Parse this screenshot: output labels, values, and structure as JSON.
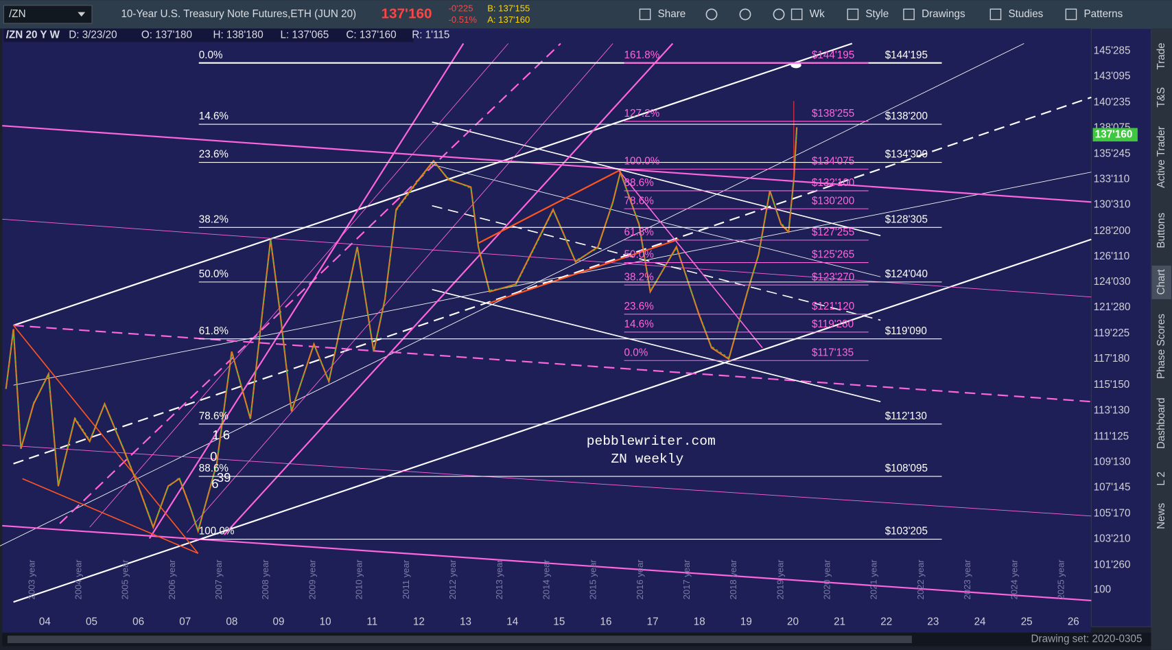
{
  "toolbar": {
    "symbol": "/ZN",
    "title": "10-Year U.S. Treasury Note Futures,ETH (JUN 20)",
    "last": "137'160",
    "change": "-0'225",
    "change_pct": "-0.51%",
    "bid": "B: 137'155",
    "ask": "A: 137'160",
    "buttons": [
      "Share",
      "Wk",
      "Style",
      "Drawings",
      "Studies",
      "Patterns"
    ]
  },
  "info_bar": [
    "/ZN 20 Y W",
    "D: 3/23/20",
    "O: 137'180",
    "H: 138'180",
    "L: 137'065",
    "C: 137'160",
    "R: 1'115"
  ],
  "price_axis": [
    "145'285",
    "143'095",
    "140'235",
    "138'075",
    "135'245",
    "133'110",
    "130'310",
    "128'200",
    "126'110",
    "124'030",
    "121'280",
    "119'225",
    "117'180",
    "115'150",
    "113'130",
    "111'125",
    "109'130",
    "107'145",
    "105'170",
    "103'210",
    "101'260",
    "100"
  ],
  "current_price": "137'160",
  "time_axis": [
    "04",
    "05",
    "06",
    "07",
    "08",
    "09",
    "10",
    "11",
    "12",
    "13",
    "14",
    "15",
    "16",
    "17",
    "18",
    "19",
    "20",
    "21",
    "22",
    "23",
    "24",
    "25",
    "26"
  ],
  "year_labels": [
    "2003 year",
    "2004 year",
    "2005 year",
    "2006 year",
    "2007 year",
    "2008 year",
    "2009 year",
    "2010 year",
    "2011 year",
    "2012 year",
    "2013 year",
    "2014 year",
    "2015 year",
    "2016 year",
    "2017 year",
    "2018 year",
    "2019 year",
    "2020 year",
    "2021 year",
    "2022 year",
    "2023 year",
    "2024 year",
    "2025 year"
  ],
  "fib_main": [
    {
      "ratio": "0.0%",
      "price": "$144'195"
    },
    {
      "ratio": "14.6%",
      "price": "$138'200"
    },
    {
      "ratio": "23.6%",
      "price": "$134'300"
    },
    {
      "ratio": "38.2%",
      "price": "$128'305"
    },
    {
      "ratio": "50.0%",
      "price": "$124'040"
    },
    {
      "ratio": "61.8%",
      "price": "$119'090"
    },
    {
      "ratio": "78.6%",
      "price": "$112'130"
    },
    {
      "ratio": "88.6%",
      "price": "$108'095"
    },
    {
      "ratio": "100.0%",
      "price": "$103'205"
    }
  ],
  "fib_target": [
    {
      "ratio": "161.8%",
      "price": "$144'195"
    },
    {
      "ratio": "127.2%",
      "price": "$138'255"
    },
    {
      "ratio": "100.0%",
      "price": "$134'075"
    },
    {
      "ratio": "88.6%",
      "price": "$132'100"
    },
    {
      "ratio": "78.6%",
      "price": "$130'200"
    },
    {
      "ratio": "61.8%",
      "price": "$127'255"
    },
    {
      "ratio": "50.0%",
      "price": "$125'265"
    },
    {
      "ratio": "38.2%",
      "price": "$123'270"
    },
    {
      "ratio": "23.6%",
      "price": "$121'120"
    },
    {
      "ratio": "14.6%",
      "price": "$119'280"
    },
    {
      "ratio": "0.0%",
      "price": "$117'135"
    }
  ],
  "watermark": [
    "pebblewriter.com",
    "ZN weekly"
  ],
  "annotations": [
    "1 6",
    "0",
    "6",
    "39"
  ],
  "status": "Drawing set: 2020-0305",
  "side_tabs": [
    "Trade",
    "T&S",
    "Active Trader",
    "Buttons",
    "Chart",
    "Phase Scores",
    "Dashboard",
    "L 2",
    "News"
  ]
}
